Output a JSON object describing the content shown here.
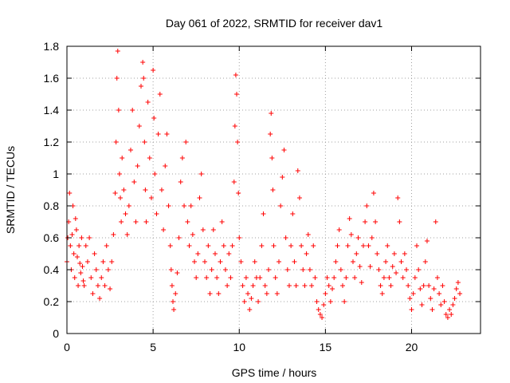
{
  "chart_data": {
    "type": "scatter",
    "title": "Day 061 of 2022, SRMTID for receiver dav1",
    "xlabel": "GPS time / hours",
    "ylabel": "SRMTID / TECUs",
    "xlim": [
      0,
      24
    ],
    "ylim": [
      0,
      1.8
    ],
    "xticks": [
      0,
      5,
      10,
      15,
      20
    ],
    "xtick_labels": [
      "0",
      "5",
      "10",
      "15",
      "20"
    ],
    "yticks": [
      0,
      0.2,
      0.4,
      0.6,
      0.8,
      1.0,
      1.2,
      1.4,
      1.6,
      1.8
    ],
    "ytick_labels": [
      "0",
      "0.2",
      "0.4",
      "0.6",
      "0.8",
      "1",
      "1.2",
      "1.4",
      "1.6",
      "1.8"
    ],
    "grid": true,
    "marker": "+",
    "color": "#ff0000",
    "series": [
      {
        "name": "SRMTID",
        "points": [
          [
            0.0,
            0.45
          ],
          [
            0.05,
            0.6
          ],
          [
            0.1,
            0.7
          ],
          [
            0.15,
            0.88
          ],
          [
            0.2,
            0.55
          ],
          [
            0.25,
            0.4
          ],
          [
            0.3,
            0.62
          ],
          [
            0.35,
            0.8
          ],
          [
            0.4,
            0.5
          ],
          [
            0.45,
            0.35
          ],
          [
            0.5,
            0.72
          ],
          [
            0.55,
            0.65
          ],
          [
            0.6,
            0.48
          ],
          [
            0.65,
            0.3
          ],
          [
            0.7,
            0.55
          ],
          [
            0.75,
            0.44
          ],
          [
            0.8,
            0.38
          ],
          [
            0.85,
            0.6
          ],
          [
            0.9,
            0.42
          ],
          [
            0.95,
            0.33
          ],
          [
            1.0,
            0.3
          ],
          [
            1.1,
            0.55
          ],
          [
            1.2,
            0.45
          ],
          [
            1.3,
            0.6
          ],
          [
            1.4,
            0.35
          ],
          [
            1.5,
            0.25
          ],
          [
            1.6,
            0.5
          ],
          [
            1.7,
            0.4
          ],
          [
            1.8,
            0.3
          ],
          [
            1.9,
            0.22
          ],
          [
            2.0,
            0.35
          ],
          [
            2.1,
            0.45
          ],
          [
            2.2,
            0.3
          ],
          [
            2.3,
            0.55
          ],
          [
            2.4,
            0.4
          ],
          [
            2.5,
            0.28
          ],
          [
            2.6,
            0.45
          ],
          [
            2.7,
            0.62
          ],
          [
            2.8,
            0.88
          ],
          [
            2.85,
            1.2
          ],
          [
            2.9,
            1.6
          ],
          [
            2.95,
            1.77
          ],
          [
            3.0,
            1.4
          ],
          [
            3.05,
            1.0
          ],
          [
            3.1,
            0.85
          ],
          [
            3.15,
            0.7
          ],
          [
            3.2,
            1.1
          ],
          [
            3.3,
            0.9
          ],
          [
            3.4,
            0.75
          ],
          [
            3.5,
            0.62
          ],
          [
            3.6,
            0.8
          ],
          [
            3.7,
            1.15
          ],
          [
            3.8,
            1.4
          ],
          [
            3.9,
            0.95
          ],
          [
            4.0,
            0.7
          ],
          [
            4.1,
            1.05
          ],
          [
            4.2,
            1.3
          ],
          [
            4.3,
            1.55
          ],
          [
            4.4,
            1.7
          ],
          [
            4.45,
            1.6
          ],
          [
            4.5,
            1.2
          ],
          [
            4.55,
            0.9
          ],
          [
            4.6,
            0.7
          ],
          [
            4.7,
            1.45
          ],
          [
            4.8,
            1.1
          ],
          [
            4.9,
            0.85
          ],
          [
            5.0,
            1.65
          ],
          [
            5.05,
            1.35
          ],
          [
            5.1,
            1.0
          ],
          [
            5.2,
            0.75
          ],
          [
            5.3,
            1.25
          ],
          [
            5.4,
            1.5
          ],
          [
            5.5,
            0.9
          ],
          [
            5.6,
            0.65
          ],
          [
            5.7,
            1.05
          ],
          [
            5.8,
            1.25
          ],
          [
            5.9,
            0.8
          ],
          [
            6.0,
            0.55
          ],
          [
            6.05,
            0.4
          ],
          [
            6.1,
            0.3
          ],
          [
            6.15,
            0.2
          ],
          [
            6.2,
            0.15
          ],
          [
            6.3,
            0.25
          ],
          [
            6.4,
            0.38
          ],
          [
            6.5,
            0.6
          ],
          [
            6.6,
            0.95
          ],
          [
            6.7,
            1.1
          ],
          [
            6.8,
            0.8
          ],
          [
            6.9,
            1.2
          ],
          [
            7.0,
            0.7
          ],
          [
            7.1,
            0.55
          ],
          [
            7.2,
            0.8
          ],
          [
            7.3,
            0.62
          ],
          [
            7.4,
            0.45
          ],
          [
            7.5,
            0.35
          ],
          [
            7.6,
            0.5
          ],
          [
            7.7,
            0.85
          ],
          [
            7.8,
            1.0
          ],
          [
            7.9,
            0.65
          ],
          [
            8.0,
            0.45
          ],
          [
            8.1,
            0.35
          ],
          [
            8.2,
            0.55
          ],
          [
            8.3,
            0.25
          ],
          [
            8.4,
            0.4
          ],
          [
            8.5,
            0.65
          ],
          [
            8.6,
            0.5
          ],
          [
            8.7,
            0.35
          ],
          [
            8.8,
            0.25
          ],
          [
            8.9,
            0.45
          ],
          [
            9.0,
            0.7
          ],
          [
            9.1,
            0.55
          ],
          [
            9.2,
            0.4
          ],
          [
            9.3,
            0.3
          ],
          [
            9.4,
            0.5
          ],
          [
            9.5,
            0.35
          ],
          [
            9.6,
            0.55
          ],
          [
            9.7,
            0.95
          ],
          [
            9.75,
            1.3
          ],
          [
            9.8,
            1.62
          ],
          [
            9.85,
            1.5
          ],
          [
            9.9,
            1.2
          ],
          [
            9.95,
            0.88
          ],
          [
            10.0,
            0.6
          ],
          [
            10.1,
            0.45
          ],
          [
            10.2,
            0.3
          ],
          [
            10.3,
            0.2
          ],
          [
            10.4,
            0.35
          ],
          [
            10.5,
            0.25
          ],
          [
            10.6,
            0.15
          ],
          [
            10.7,
            0.22
          ],
          [
            10.8,
            0.3
          ],
          [
            10.9,
            0.45
          ],
          [
            11.0,
            0.35
          ],
          [
            11.1,
            0.2
          ],
          [
            11.2,
            0.35
          ],
          [
            11.3,
            0.55
          ],
          [
            11.4,
            0.75
          ],
          [
            11.5,
            0.3
          ],
          [
            11.6,
            0.25
          ],
          [
            11.7,
            0.4
          ],
          [
            11.8,
            1.25
          ],
          [
            11.85,
            1.38
          ],
          [
            11.9,
            1.1
          ],
          [
            11.95,
            0.9
          ],
          [
            12.0,
            0.55
          ],
          [
            12.1,
            0.35
          ],
          [
            12.2,
            0.25
          ],
          [
            12.3,
            0.45
          ],
          [
            12.4,
            0.8
          ],
          [
            12.5,
            0.98
          ],
          [
            12.6,
            1.15
          ],
          [
            12.7,
            0.6
          ],
          [
            12.8,
            0.4
          ],
          [
            12.9,
            0.3
          ],
          [
            13.0,
            0.55
          ],
          [
            13.1,
            0.75
          ],
          [
            13.2,
            0.45
          ],
          [
            13.3,
            0.3
          ],
          [
            13.4,
            1.02
          ],
          [
            13.5,
            0.85
          ],
          [
            13.6,
            0.55
          ],
          [
            13.7,
            0.4
          ],
          [
            13.8,
            0.3
          ],
          [
            13.9,
            0.5
          ],
          [
            14.0,
            0.62
          ],
          [
            14.1,
            0.4
          ],
          [
            14.2,
            0.3
          ],
          [
            14.3,
            0.55
          ],
          [
            14.4,
            0.35
          ],
          [
            14.5,
            0.2
          ],
          [
            14.6,
            0.15
          ],
          [
            14.7,
            0.12
          ],
          [
            14.8,
            0.1
          ],
          [
            14.9,
            0.18
          ],
          [
            15.0,
            0.25
          ],
          [
            15.1,
            0.35
          ],
          [
            15.2,
            0.3
          ],
          [
            15.3,
            0.2
          ],
          [
            15.4,
            0.28
          ],
          [
            15.5,
            0.35
          ],
          [
            15.6,
            0.45
          ],
          [
            15.7,
            0.55
          ],
          [
            15.8,
            0.65
          ],
          [
            15.9,
            0.4
          ],
          [
            16.0,
            0.3
          ],
          [
            16.1,
            0.2
          ],
          [
            16.2,
            0.35
          ],
          [
            16.3,
            0.55
          ],
          [
            16.4,
            0.72
          ],
          [
            16.5,
            0.62
          ],
          [
            16.6,
            0.45
          ],
          [
            16.7,
            0.35
          ],
          [
            16.8,
            0.5
          ],
          [
            16.9,
            0.6
          ],
          [
            17.0,
            0.42
          ],
          [
            17.1,
            0.32
          ],
          [
            17.2,
            0.55
          ],
          [
            17.3,
            0.7
          ],
          [
            17.4,
            0.8
          ],
          [
            17.5,
            0.55
          ],
          [
            17.6,
            0.42
          ],
          [
            17.7,
            0.6
          ],
          [
            17.8,
            0.88
          ],
          [
            17.9,
            0.7
          ],
          [
            18.0,
            0.5
          ],
          [
            18.1,
            0.4
          ],
          [
            18.2,
            0.3
          ],
          [
            18.3,
            0.25
          ],
          [
            18.4,
            0.35
          ],
          [
            18.5,
            0.45
          ],
          [
            18.6,
            0.55
          ],
          [
            18.7,
            0.35
          ],
          [
            18.8,
            0.3
          ],
          [
            18.9,
            0.42
          ],
          [
            19.0,
            0.5
          ],
          [
            19.1,
            0.38
          ],
          [
            19.2,
            0.85
          ],
          [
            19.3,
            0.7
          ],
          [
            19.4,
            0.45
          ],
          [
            19.5,
            0.35
          ],
          [
            19.6,
            0.5
          ],
          [
            19.7,
            0.4
          ],
          [
            19.8,
            0.3
          ],
          [
            19.9,
            0.22
          ],
          [
            20.0,
            0.15
          ],
          [
            20.1,
            0.25
          ],
          [
            20.2,
            0.35
          ],
          [
            20.3,
            0.55
          ],
          [
            20.4,
            0.4
          ],
          [
            20.5,
            0.28
          ],
          [
            20.6,
            0.18
          ],
          [
            20.7,
            0.3
          ],
          [
            20.8,
            0.45
          ],
          [
            20.9,
            0.58
          ],
          [
            21.0,
            0.3
          ],
          [
            21.1,
            0.22
          ],
          [
            21.2,
            0.15
          ],
          [
            21.3,
            0.28
          ],
          [
            21.4,
            0.7
          ],
          [
            21.5,
            0.35
          ],
          [
            21.6,
            0.25
          ],
          [
            21.7,
            0.18
          ],
          [
            21.8,
            0.3
          ],
          [
            21.9,
            0.2
          ],
          [
            22.0,
            0.12
          ],
          [
            22.1,
            0.1
          ],
          [
            22.2,
            0.15
          ],
          [
            22.3,
            0.12
          ],
          [
            22.4,
            0.18
          ],
          [
            22.5,
            0.22
          ],
          [
            22.6,
            0.28
          ],
          [
            22.7,
            0.32
          ],
          [
            22.8,
            0.25
          ]
        ]
      }
    ]
  }
}
